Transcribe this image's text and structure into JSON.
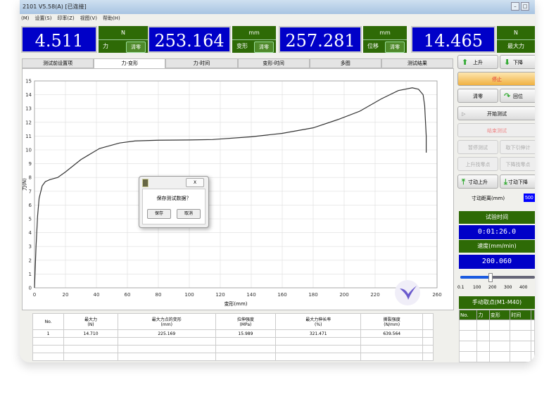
{
  "window": {
    "title": "2101  V5.58(A)  [已连接]",
    "menu": [
      "(M)",
      "设置(S)",
      "印率(Z)",
      "视图(V)",
      "帮助(H)"
    ]
  },
  "readouts": [
    {
      "value": "4.511",
      "unit": "N",
      "label": "力",
      "zero": "清零"
    },
    {
      "value": "253.164",
      "unit": "mm",
      "label": "变形",
      "zero": "清零"
    },
    {
      "value": "257.281",
      "unit": "mm",
      "label": "位移",
      "zero": "清零"
    },
    {
      "value": "14.465",
      "unit": "N",
      "label": "最大力"
    }
  ],
  "tabs": [
    "测试前设置项",
    "力-变形",
    "力-时间",
    "变形-时间",
    "多图",
    "测试结果"
  ],
  "active_tab": "力-变形",
  "chart_data": {
    "type": "line",
    "xlabel": "变形(mm)",
    "ylabel": "力(N)",
    "xlim": [
      0,
      260
    ],
    "ylim": [
      0,
      15
    ],
    "grid": true,
    "xticks": [
      0,
      20,
      40,
      60,
      80,
      100,
      120,
      140,
      160,
      180,
      200,
      220,
      240,
      260
    ],
    "yticks": [
      0,
      1,
      2,
      3,
      4,
      5,
      6,
      7,
      8,
      9,
      10,
      11,
      12,
      13,
      14,
      15
    ],
    "series": [
      {
        "x": [
          0,
          1,
          2,
          3,
          5,
          7,
          10,
          15,
          20,
          30,
          42,
          55,
          65,
          80,
          100,
          115,
          140,
          160,
          180,
          196,
          210,
          224,
          235,
          244,
          248,
          251,
          252,
          253,
          253
        ],
        "y": [
          0,
          3,
          5.2,
          6.5,
          7.4,
          7.7,
          7.85,
          8.0,
          8.4,
          9.3,
          10.1,
          10.5,
          10.65,
          10.7,
          10.72,
          10.75,
          10.95,
          11.2,
          11.6,
          12.2,
          12.8,
          13.7,
          14.3,
          14.5,
          14.4,
          14.0,
          13.2,
          11,
          9.8
        ]
      }
    ]
  },
  "dialog": {
    "message": "保存测试数据？",
    "save": "保存",
    "cancel": "取消",
    "close": "X"
  },
  "results": {
    "headers": [
      [
        "No.",
        ""
      ],
      [
        "最大力",
        "(N)"
      ],
      [
        "最大力点的变形",
        "(mm)"
      ],
      [
        "拉伸强度",
        "(MPa)"
      ],
      [
        "最大力伸长率",
        "(%)"
      ],
      [
        "撕裂强度",
        "(N/mm)"
      ],
      [
        "",
        ""
      ]
    ],
    "rows": [
      [
        "1",
        "14.710",
        "225.169",
        "15.989",
        "321.471",
        "639.564",
        ""
      ]
    ]
  },
  "controls": {
    "up": "上升",
    "down": "下降",
    "stop": "停止",
    "zero": "清零",
    "return": "回位",
    "start": "开始测试",
    "end": "结束测试",
    "pause": "暂停测试",
    "takeoff": "取下引伸计",
    "up_break": "上升找零点",
    "down_break": "下降找零点",
    "jog_up": "寸动上升",
    "jog_down": "寸动下降",
    "jog_dist_label": "寸动距离(mm)",
    "jog_dist": "500"
  },
  "test_time": {
    "label": "试验时间",
    "value": "0:01:26.0"
  },
  "speed": {
    "label": "速度(mm/min)",
    "value": "200.060",
    "slider_value": 200,
    "ticks": [
      "0.1",
      "100",
      "200",
      "300",
      "400"
    ]
  },
  "manual": {
    "label": "手动取点(M1-M40)",
    "headers": [
      "No.",
      "力",
      "变形",
      "时间",
      ""
    ]
  }
}
